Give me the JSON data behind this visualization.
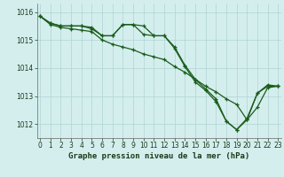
{
  "title": "Graphe pression niveau de la mer (hPa)",
  "bg_color": "#d4eeee",
  "grid_color": "#b0d4d4",
  "line_color": "#1a5c1a",
  "x_ticks": [
    0,
    1,
    2,
    3,
    4,
    5,
    6,
    7,
    8,
    9,
    10,
    11,
    12,
    13,
    14,
    15,
    16,
    17,
    18,
    19,
    20,
    21,
    22,
    23
  ],
  "ylim": [
    1011.5,
    1016.3
  ],
  "yticks": [
    1012,
    1013,
    1014,
    1015,
    1016
  ],
  "xlim": [
    -0.3,
    23.3
  ],
  "series1": [
    1015.85,
    1015.6,
    1015.5,
    1015.5,
    1015.5,
    1015.4,
    1015.15,
    1015.15,
    1015.55,
    1015.55,
    1015.5,
    1015.15,
    1015.15,
    1014.75,
    1014.1,
    1013.6,
    1013.25,
    1012.9,
    1012.1,
    1011.8,
    1012.15,
    1013.1,
    1013.4,
    1013.35
  ],
  "series2": [
    1015.85,
    1015.6,
    1015.5,
    1015.5,
    1015.5,
    1015.45,
    1015.15,
    1015.15,
    1015.55,
    1015.55,
    1015.2,
    1015.15,
    1015.15,
    1014.7,
    1014.05,
    1013.5,
    1013.2,
    1012.8,
    1012.1,
    1011.8,
    1012.2,
    1013.1,
    1013.35,
    1013.35
  ],
  "series3": [
    1015.85,
    1015.55,
    1015.45,
    1015.4,
    1015.35,
    1015.3,
    1015.0,
    1014.85,
    1014.75,
    1014.65,
    1014.5,
    1014.4,
    1014.3,
    1014.05,
    1013.85,
    1013.6,
    1013.35,
    1013.15,
    1012.9,
    1012.7,
    1012.15,
    1012.6,
    1013.3,
    1013.35
  ],
  "tick_fontsize": 5.5,
  "title_fontsize": 6.5,
  "marker_size": 3,
  "line_width": 0.9
}
